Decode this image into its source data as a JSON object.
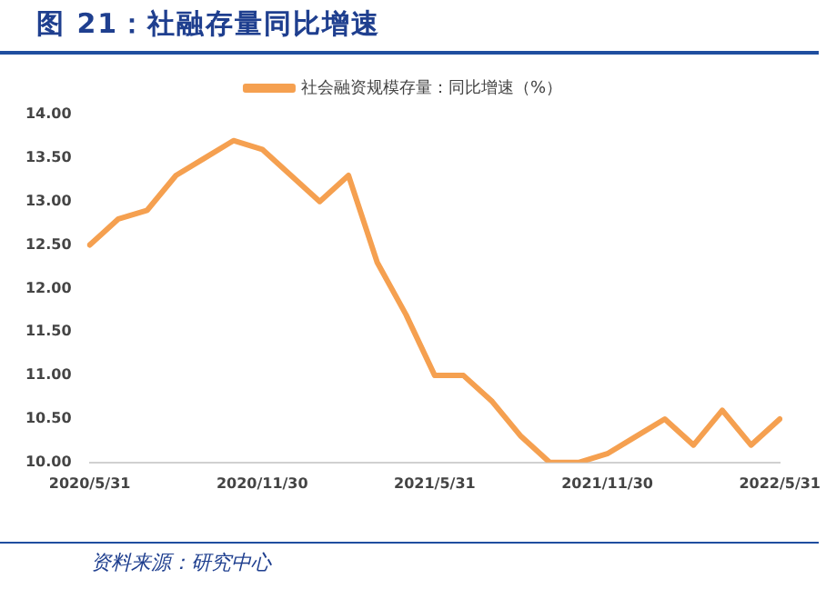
{
  "chart_data": {
    "type": "line",
    "title": "图 21：社融存量同比增速",
    "categories": [
      "2020/5/31",
      null,
      null,
      null,
      null,
      null,
      "2020/11/30",
      null,
      null,
      null,
      null,
      null,
      "2021/5/31",
      null,
      null,
      null,
      null,
      null,
      "2021/11/30",
      null,
      null,
      null,
      null,
      null,
      "2022/5/31"
    ],
    "series": [
      {
        "name": "社会融资规模存量：同比增速（%）",
        "color": "#f5a050",
        "values": [
          12.5,
          12.8,
          12.9,
          13.3,
          13.5,
          13.7,
          13.6,
          13.3,
          13.0,
          13.3,
          12.3,
          11.7,
          11.0,
          11.0,
          10.7,
          10.3,
          10.0,
          10.0,
          10.1,
          10.3,
          10.5,
          10.2,
          10.6,
          10.2,
          10.5
        ]
      }
    ],
    "ylim": [
      10,
      14
    ],
    "yticks": [
      {
        "value": 10,
        "label": "10.00"
      },
      {
        "value": 10.5,
        "label": "10.50"
      },
      {
        "value": 11,
        "label": "11.00"
      },
      {
        "value": 11.5,
        "label": "11.50"
      },
      {
        "value": 12,
        "label": "12.00"
      },
      {
        "value": 12.5,
        "label": "12.50"
      },
      {
        "value": 13,
        "label": "13.00"
      },
      {
        "value": 13.5,
        "label": "13.50"
      },
      {
        "value": 14,
        "label": "14.00"
      }
    ],
    "grid": false,
    "legend": "top",
    "marker": "none",
    "line_style": "solid",
    "annotations": [
      "资料来源：研究中心"
    ]
  }
}
